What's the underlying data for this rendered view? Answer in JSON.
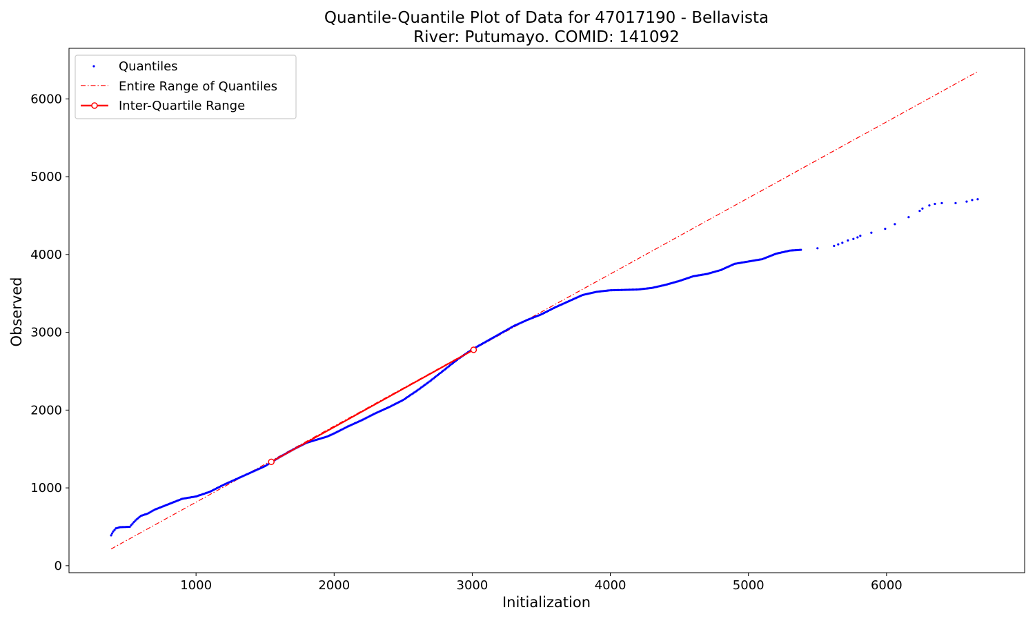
{
  "chart_data": {
    "type": "scatter",
    "title": "Quantile-Quantile Plot of Data for 47017190 - Bellavista",
    "subtitle": "River: Putumayo. COMID: 141092",
    "xlabel": "Initialization",
    "ylabel": "Observed",
    "xlim": [
      80,
      7000
    ],
    "ylim": [
      -90,
      6650
    ],
    "xticks": [
      1000,
      2000,
      3000,
      4000,
      5000,
      6000
    ],
    "yticks": [
      0,
      1000,
      2000,
      3000,
      4000,
      5000,
      6000
    ],
    "grid": false,
    "legend_position": "top-left",
    "colors": {
      "quantiles": "#0000ff",
      "range_line": "#ff0000",
      "iqr_line": "#ff0000"
    },
    "legend": [
      {
        "label": "Quantiles",
        "style": "point"
      },
      {
        "label": "Entire Range of Quantiles",
        "style": "dashdot"
      },
      {
        "label": "Inter-Quartile Range",
        "style": "line-marker"
      }
    ],
    "series": [
      {
        "name": "Quantiles",
        "kind": "points",
        "curve": [
          [
            385,
            390
          ],
          [
            400,
            440
          ],
          [
            420,
            480
          ],
          [
            450,
            495
          ],
          [
            520,
            500
          ],
          [
            560,
            580
          ],
          [
            600,
            640
          ],
          [
            650,
            670
          ],
          [
            700,
            720
          ],
          [
            800,
            790
          ],
          [
            900,
            860
          ],
          [
            1000,
            890
          ],
          [
            1100,
            950
          ],
          [
            1200,
            1040
          ],
          [
            1300,
            1120
          ],
          [
            1400,
            1200
          ],
          [
            1500,
            1280
          ],
          [
            1600,
            1390
          ],
          [
            1700,
            1490
          ],
          [
            1800,
            1580
          ],
          [
            1950,
            1660
          ],
          [
            2000,
            1700
          ],
          [
            2100,
            1790
          ],
          [
            2200,
            1870
          ],
          [
            2300,
            1960
          ],
          [
            2400,
            2040
          ],
          [
            2500,
            2130
          ],
          [
            2600,
            2250
          ],
          [
            2700,
            2380
          ],
          [
            2800,
            2520
          ],
          [
            2900,
            2660
          ],
          [
            3000,
            2780
          ],
          [
            3100,
            2880
          ],
          [
            3200,
            2980
          ],
          [
            3300,
            3080
          ],
          [
            3400,
            3160
          ],
          [
            3500,
            3230
          ],
          [
            3600,
            3320
          ],
          [
            3700,
            3400
          ],
          [
            3800,
            3480
          ],
          [
            3900,
            3520
          ],
          [
            4000,
            3540
          ],
          [
            4200,
            3550
          ],
          [
            4300,
            3570
          ],
          [
            4400,
            3610
          ],
          [
            4500,
            3660
          ],
          [
            4600,
            3720
          ],
          [
            4700,
            3750
          ],
          [
            4800,
            3800
          ],
          [
            4900,
            3880
          ],
          [
            5000,
            3910
          ],
          [
            5100,
            3940
          ],
          [
            5200,
            4010
          ],
          [
            5300,
            4050
          ],
          [
            5380,
            4060
          ]
        ],
        "sparse_points": [
          [
            5500,
            4080
          ],
          [
            5620,
            4110
          ],
          [
            5650,
            4130
          ],
          [
            5680,
            4150
          ],
          [
            5720,
            4180
          ],
          [
            5760,
            4200
          ],
          [
            5790,
            4220
          ],
          [
            5810,
            4240
          ],
          [
            5890,
            4280
          ],
          [
            5990,
            4330
          ],
          [
            6060,
            4390
          ],
          [
            6160,
            4480
          ],
          [
            6240,
            4560
          ],
          [
            6260,
            4590
          ],
          [
            6310,
            4630
          ],
          [
            6350,
            4650
          ],
          [
            6400,
            4660
          ],
          [
            6500,
            4660
          ],
          [
            6580,
            4680
          ],
          [
            6620,
            4700
          ],
          [
            6660,
            4710
          ]
        ]
      },
      {
        "name": "Entire Range of Quantiles",
        "kind": "line",
        "x": [
          385,
          6660
        ],
        "y": [
          215,
          6350
        ]
      },
      {
        "name": "Inter-Quartile Range",
        "kind": "line",
        "x": [
          1545,
          3010
        ],
        "y": [
          1335,
          2775
        ]
      }
    ]
  }
}
